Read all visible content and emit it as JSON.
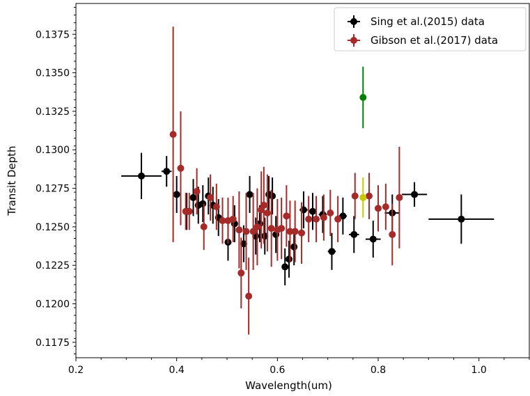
{
  "chart_data": {
    "type": "scatter",
    "xlabel": "Wavelength(um)",
    "ylabel": "Transit Depth",
    "xlim": [
      0.2,
      1.1
    ],
    "ylim": [
      0.1165,
      0.1395
    ],
    "xticks": [
      0.2,
      0.4,
      0.6,
      0.8,
      1.0
    ],
    "xtick_labels": [
      "0.2",
      "0.4",
      "0.6",
      "0.8",
      "1.0"
    ],
    "yticks": [
      0.1175,
      0.12,
      0.1225,
      0.125,
      0.1275,
      0.13,
      0.1325,
      0.135,
      0.1375
    ],
    "ytick_labels": [
      "0.1175",
      "0.1200",
      "0.1225",
      "0.1250",
      "0.1275",
      "0.1300",
      "0.1325",
      "0.1350",
      "0.1375"
    ],
    "legend_position": "top-right",
    "colors": {
      "sing": "#000000",
      "gibson": "#a52a2a",
      "green": "#008000",
      "yellow": "#c8c800"
    },
    "series": [
      {
        "name": "Sing et al.(2015) data",
        "color": "#000000",
        "points": [
          {
            "x": 0.33,
            "y": 0.1283,
            "xerr": 0.04,
            "yerr": 0.0015
          },
          {
            "x": 0.38,
            "y": 0.1286,
            "xerr": 0.01,
            "yerr": 0.001
          },
          {
            "x": 0.4,
            "y": 0.1271,
            "xerr": 0.008,
            "yerr": 0.0012
          },
          {
            "x": 0.42,
            "y": 0.126,
            "xerr": 0.008,
            "yerr": 0.0012
          },
          {
            "x": 0.433,
            "y": 0.1269,
            "xerr": 0.006,
            "yerr": 0.0012
          },
          {
            "x": 0.443,
            "y": 0.1264,
            "xerr": 0.006,
            "yerr": 0.0012
          },
          {
            "x": 0.452,
            "y": 0.1265,
            "xerr": 0.006,
            "yerr": 0.0012
          },
          {
            "x": 0.463,
            "y": 0.127,
            "xerr": 0.006,
            "yerr": 0.0012
          },
          {
            "x": 0.472,
            "y": 0.1264,
            "xerr": 0.006,
            "yerr": 0.0012
          },
          {
            "x": 0.483,
            "y": 0.1256,
            "xerr": 0.006,
            "yerr": 0.0012
          },
          {
            "x": 0.502,
            "y": 0.124,
            "xerr": 0.006,
            "yerr": 0.0012
          },
          {
            "x": 0.515,
            "y": 0.1252,
            "xerr": 0.006,
            "yerr": 0.0012
          },
          {
            "x": 0.533,
            "y": 0.1239,
            "xerr": 0.006,
            "yerr": 0.0012
          },
          {
            "x": 0.545,
            "y": 0.1271,
            "xerr": 0.006,
            "yerr": 0.0012
          },
          {
            "x": 0.557,
            "y": 0.1244,
            "xerr": 0.006,
            "yerr": 0.0012
          },
          {
            "x": 0.565,
            "y": 0.1252,
            "xerr": 0.006,
            "yerr": 0.0012
          },
          {
            "x": 0.575,
            "y": 0.1244,
            "xerr": 0.006,
            "yerr": 0.0012
          },
          {
            "x": 0.583,
            "y": 0.1271,
            "xerr": 0.006,
            "yerr": 0.0012
          },
          {
            "x": 0.59,
            "y": 0.127,
            "xerr": 0.006,
            "yerr": 0.0012
          },
          {
            "x": 0.597,
            "y": 0.1245,
            "xerr": 0.006,
            "yerr": 0.0012
          },
          {
            "x": 0.615,
            "y": 0.1224,
            "xerr": 0.006,
            "yerr": 0.0012
          },
          {
            "x": 0.623,
            "y": 0.1229,
            "xerr": 0.006,
            "yerr": 0.0012
          },
          {
            "x": 0.633,
            "y": 0.1237,
            "xerr": 0.006,
            "yerr": 0.0012
          },
          {
            "x": 0.652,
            "y": 0.1261,
            "xerr": 0.008,
            "yerr": 0.0012
          },
          {
            "x": 0.67,
            "y": 0.126,
            "xerr": 0.008,
            "yerr": 0.0012
          },
          {
            "x": 0.69,
            "y": 0.1258,
            "xerr": 0.008,
            "yerr": 0.0012
          },
          {
            "x": 0.708,
            "y": 0.1234,
            "xerr": 0.008,
            "yerr": 0.0012
          },
          {
            "x": 0.73,
            "y": 0.1257,
            "xerr": 0.008,
            "yerr": 0.0012
          },
          {
            "x": 0.752,
            "y": 0.1245,
            "xerr": 0.01,
            "yerr": 0.0012
          },
          {
            "x": 0.79,
            "y": 0.1242,
            "xerr": 0.015,
            "yerr": 0.0012
          },
          {
            "x": 0.828,
            "y": 0.1259,
            "xerr": 0.015,
            "yerr": 0.0012
          },
          {
            "x": 0.872,
            "y": 0.1271,
            "xerr": 0.025,
            "yerr": 0.0008
          },
          {
            "x": 0.965,
            "y": 0.1255,
            "xerr": 0.065,
            "yerr": 0.0016
          }
        ]
      },
      {
        "name": "Gibson et al.(2017) data",
        "color": "#a52a2a",
        "points": [
          {
            "x": 0.393,
            "y": 0.131,
            "xerr": 0,
            "yerr": 0.007
          },
          {
            "x": 0.408,
            "y": 0.1288,
            "xerr": 0,
            "yerr": 0.0037
          },
          {
            "x": 0.418,
            "y": 0.126,
            "xerr": 0,
            "yerr": 0.0012
          },
          {
            "x": 0.425,
            "y": 0.126,
            "xerr": 0,
            "yerr": 0.0012
          },
          {
            "x": 0.44,
            "y": 0.1273,
            "xerr": 0,
            "yerr": 0.0015
          },
          {
            "x": 0.454,
            "y": 0.125,
            "xerr": 0,
            "yerr": 0.0015
          },
          {
            "x": 0.467,
            "y": 0.1269,
            "xerr": 0,
            "yerr": 0.0015
          },
          {
            "x": 0.479,
            "y": 0.1263,
            "xerr": 0,
            "yerr": 0.0015
          },
          {
            "x": 0.491,
            "y": 0.1254,
            "xerr": 0,
            "yerr": 0.0015
          },
          {
            "x": 0.502,
            "y": 0.1254,
            "xerr": 0,
            "yerr": 0.0015
          },
          {
            "x": 0.512,
            "y": 0.1255,
            "xerr": 0,
            "yerr": 0.0015
          },
          {
            "x": 0.524,
            "y": 0.1248,
            "xerr": 0,
            "yerr": 0.0025
          },
          {
            "x": 0.528,
            "y": 0.122,
            "xerr": 0,
            "yerr": 0.0023
          },
          {
            "x": 0.538,
            "y": 0.1247,
            "xerr": 0,
            "yerr": 0.0025
          },
          {
            "x": 0.543,
            "y": 0.1205,
            "xerr": 0,
            "yerr": 0.0025
          },
          {
            "x": 0.552,
            "y": 0.1247,
            "xerr": 0,
            "yerr": 0.0025
          },
          {
            "x": 0.56,
            "y": 0.125,
            "xerr": 0,
            "yerr": 0.0025
          },
          {
            "x": 0.568,
            "y": 0.1261,
            "xerr": 0,
            "yerr": 0.0025
          },
          {
            "x": 0.573,
            "y": 0.1264,
            "xerr": 0,
            "yerr": 0.0025
          },
          {
            "x": 0.58,
            "y": 0.1259,
            "xerr": 0,
            "yerr": 0.0025
          },
          {
            "x": 0.588,
            "y": 0.1249,
            "xerr": 0,
            "yerr": 0.0025
          },
          {
            "x": 0.6,
            "y": 0.1248,
            "xerr": 0,
            "yerr": 0.002
          },
          {
            "x": 0.608,
            "y": 0.1249,
            "xerr": 0,
            "yerr": 0.002
          },
          {
            "x": 0.618,
            "y": 0.1257,
            "xerr": 0,
            "yerr": 0.002
          },
          {
            "x": 0.625,
            "y": 0.1247,
            "xerr": 0,
            "yerr": 0.002
          },
          {
            "x": 0.635,
            "y": 0.1247,
            "xerr": 0,
            "yerr": 0.002
          },
          {
            "x": 0.648,
            "y": 0.1246,
            "xerr": 0,
            "yerr": 0.002
          },
          {
            "x": 0.662,
            "y": 0.1255,
            "xerr": 0,
            "yerr": 0.0015
          },
          {
            "x": 0.677,
            "y": 0.1255,
            "xerr": 0,
            "yerr": 0.0015
          },
          {
            "x": 0.692,
            "y": 0.1256,
            "xerr": 0,
            "yerr": 0.0015
          },
          {
            "x": 0.705,
            "y": 0.1259,
            "xerr": 0,
            "yerr": 0.0015
          },
          {
            "x": 0.72,
            "y": 0.1255,
            "xerr": 0,
            "yerr": 0.0015
          },
          {
            "x": 0.754,
            "y": 0.127,
            "xerr": 0,
            "yerr": 0.0015
          },
          {
            "x": 0.782,
            "y": 0.127,
            "xerr": 0,
            "yerr": 0.0015
          },
          {
            "x": 0.8,
            "y": 0.1262,
            "xerr": 0,
            "yerr": 0.0015
          },
          {
            "x": 0.815,
            "y": 0.1263,
            "xerr": 0,
            "yerr": 0.0015
          },
          {
            "x": 0.828,
            "y": 0.1245,
            "xerr": 0,
            "yerr": 0.002
          },
          {
            "x": 0.842,
            "y": 0.1269,
            "xerr": 0,
            "yerr": 0.0033
          }
        ]
      },
      {
        "color": "#008000",
        "points": [
          {
            "x": 0.77,
            "y": 0.1334,
            "xerr": 0,
            "yerr": 0.002
          }
        ]
      },
      {
        "color": "#c8c800",
        "points": [
          {
            "x": 0.77,
            "y": 0.1269,
            "xerr": 0,
            "yerr": 0.0013
          }
        ]
      }
    ]
  }
}
